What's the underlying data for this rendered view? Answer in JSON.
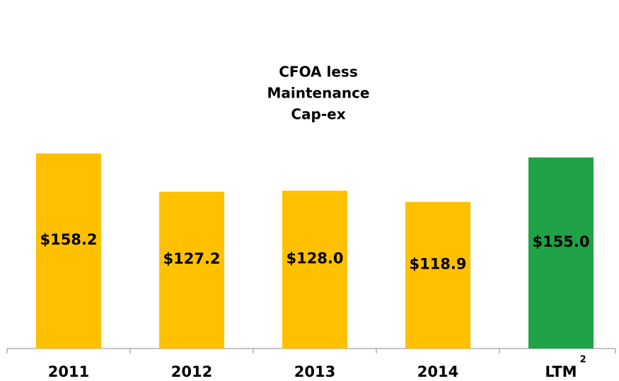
{
  "chart_data": {
    "type": "bar",
    "title": [
      "CFOA less",
      "Maintenance",
      "Cap-ex"
    ],
    "categories": [
      "2011",
      "2012",
      "2013",
      "2014",
      "LTM"
    ],
    "category_footnote": "2",
    "values": [
      158.2,
      127.2,
      128.0,
      118.9,
      155.0
    ],
    "value_labels": [
      "$158.2",
      "$127.2",
      "$128.0",
      "$118.9",
      "$155.0"
    ],
    "colors": [
      "#ffc000",
      "#ffc000",
      "#ffc000",
      "#ffc000",
      "#1fa346"
    ],
    "ylim": [
      0,
      160
    ]
  }
}
